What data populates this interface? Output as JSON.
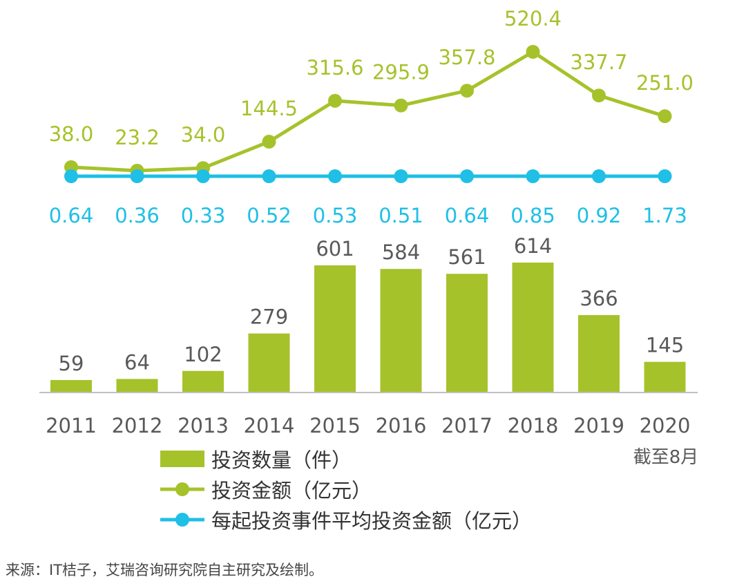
{
  "chart_data": {
    "type": "bar+line",
    "categories": [
      "2011",
      "2012",
      "2013",
      "2014",
      "2015",
      "2016",
      "2017",
      "2018",
      "2019",
      "2020"
    ],
    "x_note": "截至8月",
    "series": [
      {
        "name": "投资数量（件）",
        "kind": "bar",
        "values": [
          59,
          64,
          102,
          279,
          601,
          584,
          561,
          614,
          366,
          145
        ],
        "labels": [
          "59",
          "64",
          "102",
          "279",
          "601",
          "584",
          "561",
          "614",
          "366",
          "145"
        ]
      },
      {
        "name": "投资金额（亿元）",
        "kind": "line",
        "values": [
          38.0,
          23.2,
          34.0,
          144.5,
          315.6,
          295.9,
          357.8,
          520.4,
          337.7,
          251.0
        ],
        "labels": [
          "38.0",
          "23.2",
          "34.0",
          "144.5",
          "315.6",
          "295.9",
          "357.8",
          "520.4",
          "337.7",
          "251.0"
        ]
      },
      {
        "name": "每起投资事件平均投资金额（亿元）",
        "kind": "line",
        "values": [
          0.64,
          0.36,
          0.33,
          0.52,
          0.53,
          0.51,
          0.64,
          0.85,
          0.92,
          1.73
        ],
        "labels": [
          "0.64",
          "0.36",
          "0.33",
          "0.52",
          "0.53",
          "0.51",
          "0.64",
          "0.85",
          "0.92",
          "1.73"
        ]
      }
    ],
    "legend_position": "bottom",
    "colors": {
      "bar": "#a6c22b",
      "amount_line": "#a6c22b",
      "avg_line": "#1fbfe6",
      "axis": "#bfbfbf",
      "text": "#595959"
    }
  },
  "source": "来源：IT桔子，艾瑞咨询研究院自主研究及绘制。"
}
